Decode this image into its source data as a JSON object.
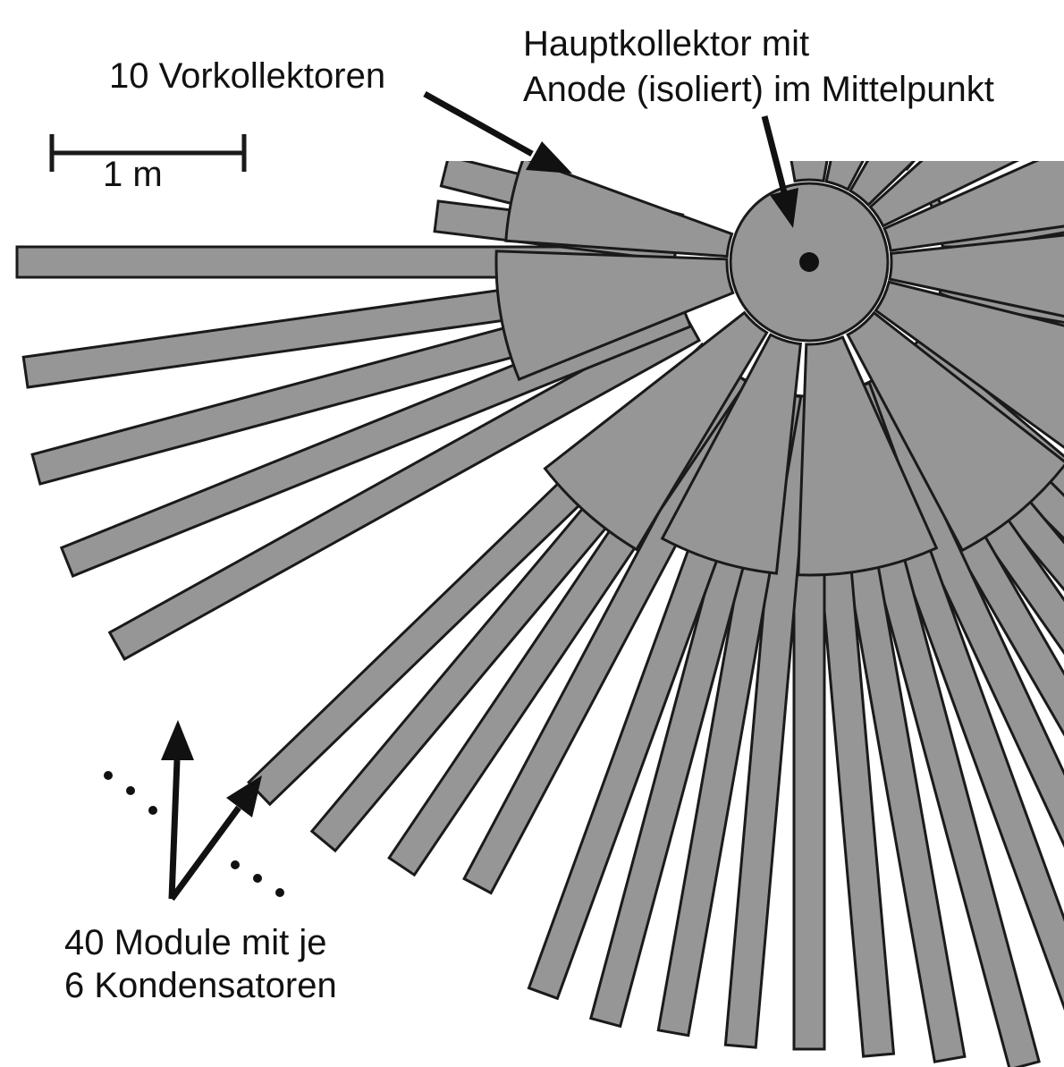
{
  "labels": {
    "vorkollektoren": "10 Vorkollektoren",
    "hauptkollektor_line1": "Hauptkollektor mit",
    "hauptkollektor_line2": "Anode (isoliert) im Mittelpunkt",
    "scale": "1 m",
    "module_line1": "40 Module mit je",
    "module_line2": "6 Kondensatoren"
  },
  "colors": {
    "fill": "#969696",
    "stroke": "#1a1a1a",
    "text": "#111111",
    "background": "#ffffff"
  }
}
